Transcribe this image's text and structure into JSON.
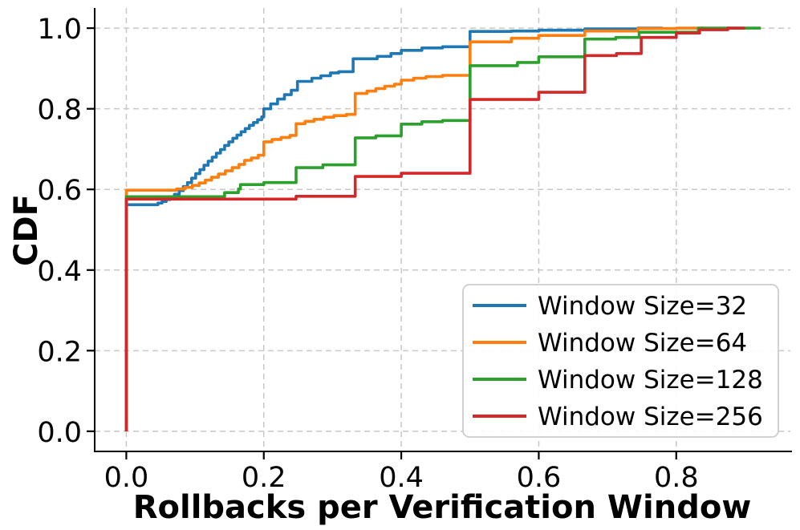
{
  "chart_data": {
    "type": "line",
    "subtype": "step-cdf",
    "title": "",
    "xlabel": "Rollbacks per Verification Window",
    "ylabel": "CDF",
    "xlim": [
      -0.046,
      0.966
    ],
    "ylim": [
      -0.05,
      1.05
    ],
    "xticks": [
      0.0,
      0.2,
      0.4,
      0.6,
      0.8
    ],
    "xtick_labels": [
      "0.0",
      "0.2",
      "0.4",
      "0.6",
      "0.8"
    ],
    "yticks": [
      0.0,
      0.2,
      0.4,
      0.6,
      0.8,
      1.0
    ],
    "ytick_labels": [
      "0.0",
      "0.2",
      "0.4",
      "0.6",
      "0.8",
      "1.0"
    ],
    "grid": true,
    "grid_style": "dashed",
    "grid_color": "#c8c8c8",
    "spine_color": "#000000",
    "background_color": "#ffffff",
    "legend_position": "lower right",
    "legend_border_color": "#cccccc",
    "series": [
      {
        "name": "Window Size=32",
        "color": "#1f77b4",
        "points": [
          [
            0,
            0
          ],
          [
            0,
            0.562
          ],
          [
            0.046,
            0.566
          ],
          [
            0.052,
            0.57
          ],
          [
            0.058,
            0.575
          ],
          [
            0.064,
            0.581
          ],
          [
            0.07,
            0.588
          ],
          [
            0.077,
            0.597
          ],
          [
            0.083,
            0.607
          ],
          [
            0.089,
            0.617
          ],
          [
            0.095,
            0.628
          ],
          [
            0.101,
            0.639
          ],
          [
            0.107,
            0.649
          ],
          [
            0.113,
            0.66
          ],
          [
            0.119,
            0.67
          ],
          [
            0.125,
            0.68
          ],
          [
            0.131,
            0.69
          ],
          [
            0.137,
            0.699
          ],
          [
            0.143,
            0.709
          ],
          [
            0.149,
            0.718
          ],
          [
            0.155,
            0.727
          ],
          [
            0.161,
            0.735
          ],
          [
            0.167,
            0.743
          ],
          [
            0.173,
            0.751
          ],
          [
            0.179,
            0.759
          ],
          [
            0.185,
            0.766
          ],
          [
            0.191,
            0.773
          ],
          [
            0.197,
            0.78
          ],
          [
            0.2,
            0.8
          ],
          [
            0.21,
            0.812
          ],
          [
            0.22,
            0.824
          ],
          [
            0.23,
            0.835
          ],
          [
            0.24,
            0.846
          ],
          [
            0.249,
            0.868
          ],
          [
            0.27,
            0.876
          ],
          [
            0.283,
            0.882
          ],
          [
            0.297,
            0.889
          ],
          [
            0.309,
            0.892
          ],
          [
            0.33,
            0.924
          ],
          [
            0.365,
            0.93
          ],
          [
            0.385,
            0.937
          ],
          [
            0.4,
            0.945
          ],
          [
            0.43,
            0.951
          ],
          [
            0.46,
            0.954
          ],
          [
            0.5,
            0.992
          ],
          [
            0.56,
            0.993
          ],
          [
            0.6,
            0.995
          ],
          [
            0.667,
            0.998
          ],
          [
            0.744,
            1.0
          ],
          [
            0.78,
            1.0
          ]
        ]
      },
      {
        "name": "Window Size=64",
        "color": "#ff7f0e",
        "points": [
          [
            0,
            0
          ],
          [
            0,
            0.598
          ],
          [
            0.073,
            0.601
          ],
          [
            0.085,
            0.605
          ],
          [
            0.096,
            0.61
          ],
          [
            0.106,
            0.616
          ],
          [
            0.115,
            0.623
          ],
          [
            0.124,
            0.63
          ],
          [
            0.134,
            0.638
          ],
          [
            0.144,
            0.646
          ],
          [
            0.154,
            0.654
          ],
          [
            0.164,
            0.662
          ],
          [
            0.172,
            0.672
          ],
          [
            0.182,
            0.678
          ],
          [
            0.192,
            0.685
          ],
          [
            0.2,
            0.718
          ],
          [
            0.212,
            0.724
          ],
          [
            0.225,
            0.729
          ],
          [
            0.238,
            0.734
          ],
          [
            0.247,
            0.763
          ],
          [
            0.26,
            0.769
          ],
          [
            0.273,
            0.774
          ],
          [
            0.287,
            0.779
          ],
          [
            0.302,
            0.783
          ],
          [
            0.32,
            0.786
          ],
          [
            0.333,
            0.838
          ],
          [
            0.35,
            0.844
          ],
          [
            0.363,
            0.85
          ],
          [
            0.376,
            0.856
          ],
          [
            0.39,
            0.861
          ],
          [
            0.4,
            0.871
          ],
          [
            0.418,
            0.876
          ],
          [
            0.436,
            0.88
          ],
          [
            0.46,
            0.883
          ],
          [
            0.5,
            0.966
          ],
          [
            0.56,
            0.975
          ],
          [
            0.6,
            0.982
          ],
          [
            0.667,
            0.993
          ],
          [
            0.744,
            0.999
          ],
          [
            0.8,
            1.0
          ],
          [
            0.84,
            1.0
          ]
        ]
      },
      {
        "name": "Window Size=128",
        "color": "#2ca02c",
        "points": [
          [
            0,
            0
          ],
          [
            0,
            0.582
          ],
          [
            0.143,
            0.592
          ],
          [
            0.163,
            0.601
          ],
          [
            0.166,
            0.612
          ],
          [
            0.2,
            0.617
          ],
          [
            0.247,
            0.654
          ],
          [
            0.286,
            0.661
          ],
          [
            0.333,
            0.728
          ],
          [
            0.363,
            0.733
          ],
          [
            0.4,
            0.762
          ],
          [
            0.43,
            0.768
          ],
          [
            0.46,
            0.771
          ],
          [
            0.5,
            0.907
          ],
          [
            0.569,
            0.915
          ],
          [
            0.6,
            0.929
          ],
          [
            0.667,
            0.973
          ],
          [
            0.712,
            0.977
          ],
          [
            0.746,
            0.99
          ],
          [
            0.832,
            1.0
          ],
          [
            0.923,
            1.0
          ]
        ]
      },
      {
        "name": "Window Size=256",
        "color": "#d62728",
        "points": [
          [
            0,
            0
          ],
          [
            0,
            0.576
          ],
          [
            0.247,
            0.583
          ],
          [
            0.333,
            0.632
          ],
          [
            0.4,
            0.64
          ],
          [
            0.5,
            0.823
          ],
          [
            0.6,
            0.841
          ],
          [
            0.667,
            0.932
          ],
          [
            0.713,
            0.937
          ],
          [
            0.749,
            0.977
          ],
          [
            0.8,
            0.988
          ],
          [
            0.834,
            0.996
          ],
          [
            0.875,
            1.0
          ],
          [
            0.9,
            1.0
          ]
        ]
      }
    ]
  }
}
